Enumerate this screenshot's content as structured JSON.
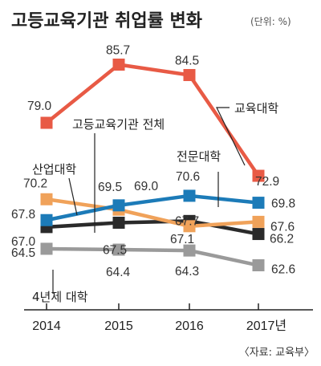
{
  "chart_data": {
    "type": "line",
    "title": "고등교육기관 취업률 변화",
    "unit": "(단위: %)",
    "source": "〈자료: 교육부〉",
    "x": [
      "2014",
      "2015",
      "2016",
      "2017년"
    ],
    "xlabel": "",
    "ylabel": "",
    "ylim": [
      60,
      88
    ],
    "grid": false,
    "legend": "inline labels",
    "series": [
      {
        "name": "교육대학",
        "color": "#e85a45",
        "values": [
          79.0,
          85.7,
          84.5,
          72.9
        ],
        "labels": [
          "79.0",
          "85.7",
          "84.5",
          "72.9"
        ]
      },
      {
        "name": "전문대학",
        "color": "#1c7bb8",
        "values": [
          67.8,
          69.5,
          70.6,
          69.8
        ],
        "labels": [
          "67.8",
          "69.5",
          "70.6",
          "69.8"
        ]
      },
      {
        "name": "산업대학",
        "color": "#f0a25a",
        "values": [
          70.2,
          69.0,
          67.1,
          67.6
        ],
        "labels": [
          "70.2",
          "69.0",
          "67.1",
          "67.6"
        ]
      },
      {
        "name": "고등교육기관 전체",
        "color": "#2a2a2a",
        "values": [
          67.0,
          67.5,
          67.7,
          66.2
        ],
        "labels": [
          "67.0",
          "67.5",
          "67.7",
          "66.2"
        ]
      },
      {
        "name": "4년제 대학",
        "color": "#9a9a9a",
        "values": [
          64.5,
          64.4,
          64.3,
          62.6
        ],
        "labels": [
          "64.5",
          "64.4",
          "64.3",
          "62.6"
        ]
      }
    ]
  }
}
